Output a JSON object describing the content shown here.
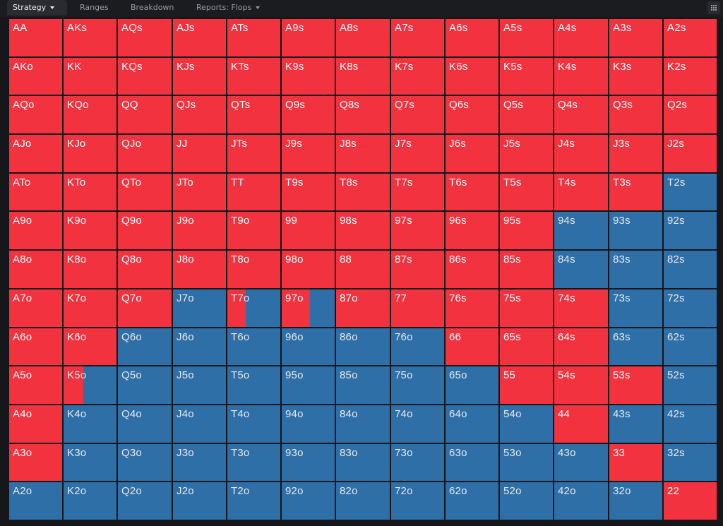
{
  "tabs": [
    {
      "label": "Strategy",
      "active": true,
      "dropdown": true
    },
    {
      "label": "Ranges",
      "active": false,
      "dropdown": false
    },
    {
      "label": "Breakdown",
      "active": false,
      "dropdown": false
    },
    {
      "label": "Reports: Flops",
      "active": false,
      "dropdown": true
    }
  ],
  "colors": {
    "raise": "#f2323f",
    "fold": "#2e6fa8"
  },
  "matrix": {
    "rows": [
      [
        "AA",
        "AKs",
        "AQs",
        "AJs",
        "ATs",
        "A9s",
        "A8s",
        "A7s",
        "A6s",
        "A5s",
        "A4s",
        "A3s",
        "A2s"
      ],
      [
        "AKo",
        "KK",
        "KQs",
        "KJs",
        "KTs",
        "K9s",
        "K8s",
        "K7s",
        "K6s",
        "K5s",
        "K4s",
        "K3s",
        "K2s"
      ],
      [
        "AQo",
        "KQo",
        "QQ",
        "QJs",
        "QTs",
        "Q9s",
        "Q8s",
        "Q7s",
        "Q6s",
        "Q5s",
        "Q4s",
        "Q3s",
        "Q2s"
      ],
      [
        "AJo",
        "KJo",
        "QJo",
        "JJ",
        "JTs",
        "J9s",
        "J8s",
        "J7s",
        "J6s",
        "J5s",
        "J4s",
        "J3s",
        "J2s"
      ],
      [
        "ATo",
        "KTo",
        "QTo",
        "JTo",
        "TT",
        "T9s",
        "T8s",
        "T7s",
        "T6s",
        "T5s",
        "T4s",
        "T3s",
        "T2s"
      ],
      [
        "A9o",
        "K9o",
        "Q9o",
        "J9o",
        "T9o",
        "99",
        "98s",
        "97s",
        "96s",
        "95s",
        "94s",
        "93s",
        "92s"
      ],
      [
        "A8o",
        "K8o",
        "Q8o",
        "J8o",
        "T8o",
        "98o",
        "88",
        "87s",
        "86s",
        "85s",
        "84s",
        "83s",
        "82s"
      ],
      [
        "A7o",
        "K7o",
        "Q7o",
        "J7o",
        "T7o",
        "97o",
        "87o",
        "77",
        "76s",
        "75s",
        "74s",
        "73s",
        "72s"
      ],
      [
        "A6o",
        "K6o",
        "Q6o",
        "J6o",
        "T6o",
        "96o",
        "86o",
        "76o",
        "66",
        "65s",
        "64s",
        "63s",
        "62s"
      ],
      [
        "A5o",
        "K5o",
        "Q5o",
        "J5o",
        "T5o",
        "95o",
        "85o",
        "75o",
        "65o",
        "55",
        "54s",
        "53s",
        "52s"
      ],
      [
        "A4o",
        "K4o",
        "Q4o",
        "J4o",
        "T4o",
        "94o",
        "84o",
        "74o",
        "64o",
        "54o",
        "44",
        "43s",
        "42s"
      ],
      [
        "A3o",
        "K3o",
        "Q3o",
        "J3o",
        "T3o",
        "93o",
        "83o",
        "73o",
        "63o",
        "53o",
        "43o",
        "33",
        "32s"
      ],
      [
        "A2o",
        "K2o",
        "Q2o",
        "J2o",
        "T2o",
        "92o",
        "82o",
        "72o",
        "62o",
        "52o",
        "42o",
        "32o",
        "22"
      ]
    ],
    "raise_freq": [
      [
        1,
        1,
        1,
        1,
        1,
        1,
        1,
        1,
        1,
        1,
        1,
        1,
        1
      ],
      [
        1,
        1,
        1,
        1,
        1,
        1,
        1,
        1,
        1,
        1,
        1,
        1,
        1
      ],
      [
        1,
        1,
        1,
        1,
        1,
        1,
        1,
        1,
        1,
        1,
        1,
        1,
        1
      ],
      [
        1,
        1,
        1,
        1,
        1,
        1,
        1,
        1,
        1,
        1,
        1,
        1,
        1
      ],
      [
        1,
        1,
        1,
        1,
        1,
        1,
        1,
        1,
        1,
        1,
        1,
        1,
        0
      ],
      [
        1,
        1,
        1,
        1,
        1,
        1,
        1,
        1,
        1,
        1,
        0,
        0,
        0
      ],
      [
        1,
        1,
        1,
        1,
        1,
        1,
        1,
        1,
        1,
        1,
        0,
        0,
        0
      ],
      [
        1,
        1,
        1,
        0,
        0.35,
        0.53,
        1,
        1,
        1,
        1,
        1,
        0,
        0
      ],
      [
        1,
        1,
        0,
        0,
        0,
        0,
        0,
        0,
        1,
        1,
        1,
        0,
        0
      ],
      [
        1,
        0.37,
        0,
        0,
        0,
        0,
        0,
        0,
        0,
        1,
        1,
        1,
        0
      ],
      [
        1,
        0,
        0,
        0,
        0,
        0,
        0,
        0,
        0,
        0,
        1,
        0,
        0
      ],
      [
        1,
        0,
        0,
        0,
        0,
        0,
        0,
        0,
        0,
        0,
        0,
        1,
        0
      ],
      [
        0,
        0,
        0,
        0,
        0,
        0,
        0,
        0,
        0,
        0,
        0,
        0,
        1
      ]
    ]
  }
}
